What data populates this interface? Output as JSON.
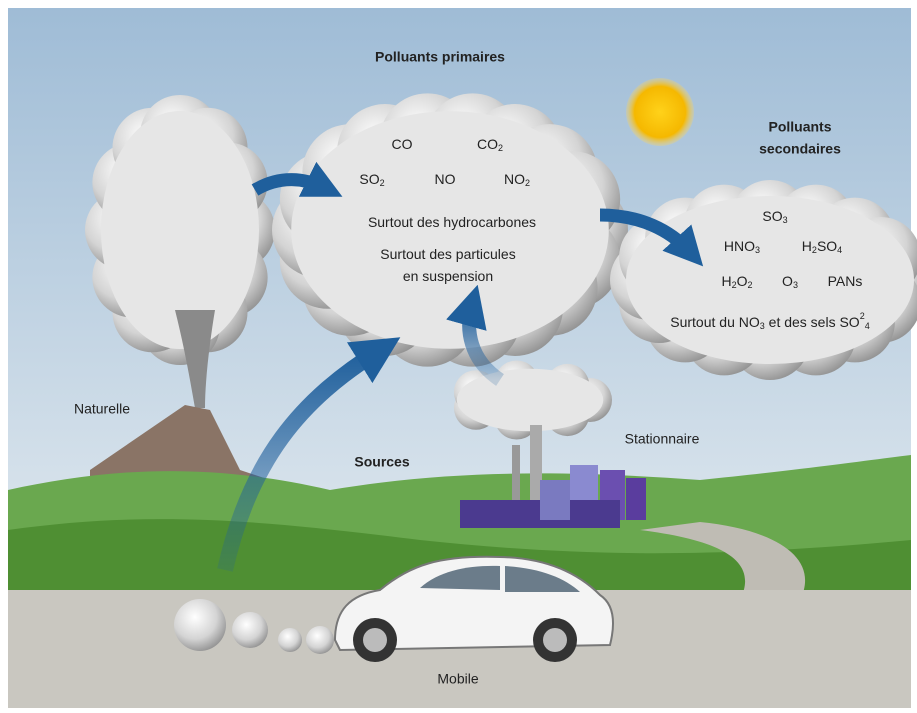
{
  "primary": {
    "title": "Polluants primaires",
    "items": [
      [
        {
          "text": "CO"
        }
      ],
      [
        {
          "text": "CO"
        },
        {
          "sub": "2"
        }
      ],
      [
        {
          "text": "SO"
        },
        {
          "sub": "2"
        }
      ],
      [
        {
          "text": "NO"
        }
      ],
      [
        {
          "text": "NO"
        },
        {
          "sub": "2"
        }
      ],
      [
        {
          "text": "Surtout des hydrocarbones"
        }
      ],
      [
        {
          "text": "Surtout des particules"
        }
      ],
      [
        {
          "text": "en suspension"
        }
      ]
    ]
  },
  "secondary": {
    "title": [
      "Polluants",
      "secondaires"
    ],
    "items": [
      [
        {
          "text": "SO"
        },
        {
          "sub": "3"
        }
      ],
      [
        {
          "text": "HNO"
        },
        {
          "sub": "3"
        }
      ],
      [
        {
          "text": "H"
        },
        {
          "sub": "2"
        },
        {
          "text": "SO"
        },
        {
          "sub": "4"
        }
      ],
      [
        {
          "text": "H"
        },
        {
          "sub": "2"
        },
        {
          "text": "O"
        },
        {
          "sub": "2"
        }
      ],
      [
        {
          "text": "O"
        },
        {
          "sub": "3"
        }
      ],
      [
        {
          "text": "PANs"
        }
      ],
      [
        {
          "text": "Surtout du NO"
        },
        {
          "sub": "3"
        },
        {
          "text": " et des sels SO"
        },
        {
          "sup": "2"
        },
        {
          "sub": "4"
        }
      ]
    ]
  },
  "sources": {
    "label": "Sources",
    "natural": "Naturelle",
    "stationary": "Stationnaire",
    "mobile": "Mobile"
  }
}
